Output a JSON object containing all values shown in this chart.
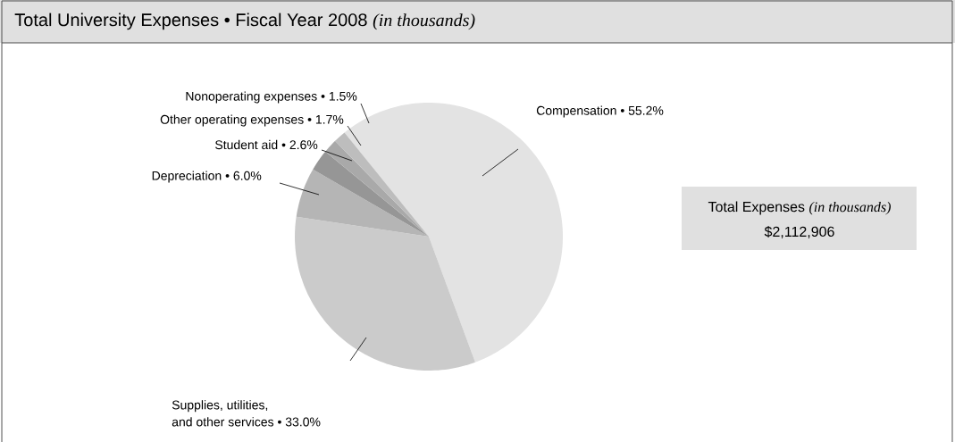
{
  "chart_data": {
    "type": "pie",
    "title": "Total University Expenses • Fiscal Year 2008 *(in thousands)*",
    "categories": [
      "Compensation",
      "Supplies, utilities, and other services",
      "Depreciation",
      "Student aid",
      "Other operating expenses",
      "Nonoperating expenses"
    ],
    "values": [
      55.2,
      33.0,
      6.0,
      2.6,
      1.7,
      1.5
    ],
    "value_labels": [
      "• 55.2%",
      "• 33.0%",
      "• 6.0%",
      "• 2.6%",
      "• 1.7%",
      "• 1.5%"
    ],
    "colors": [
      "#e3e3e3",
      "#cbcbcb",
      "#b5b5b5",
      "#969696",
      "#a9a9a9",
      "#bdbdbd"
    ],
    "annotations": [
      "Total Expenses *(in thousands)*",
      "$2,112,906"
    ]
  }
}
